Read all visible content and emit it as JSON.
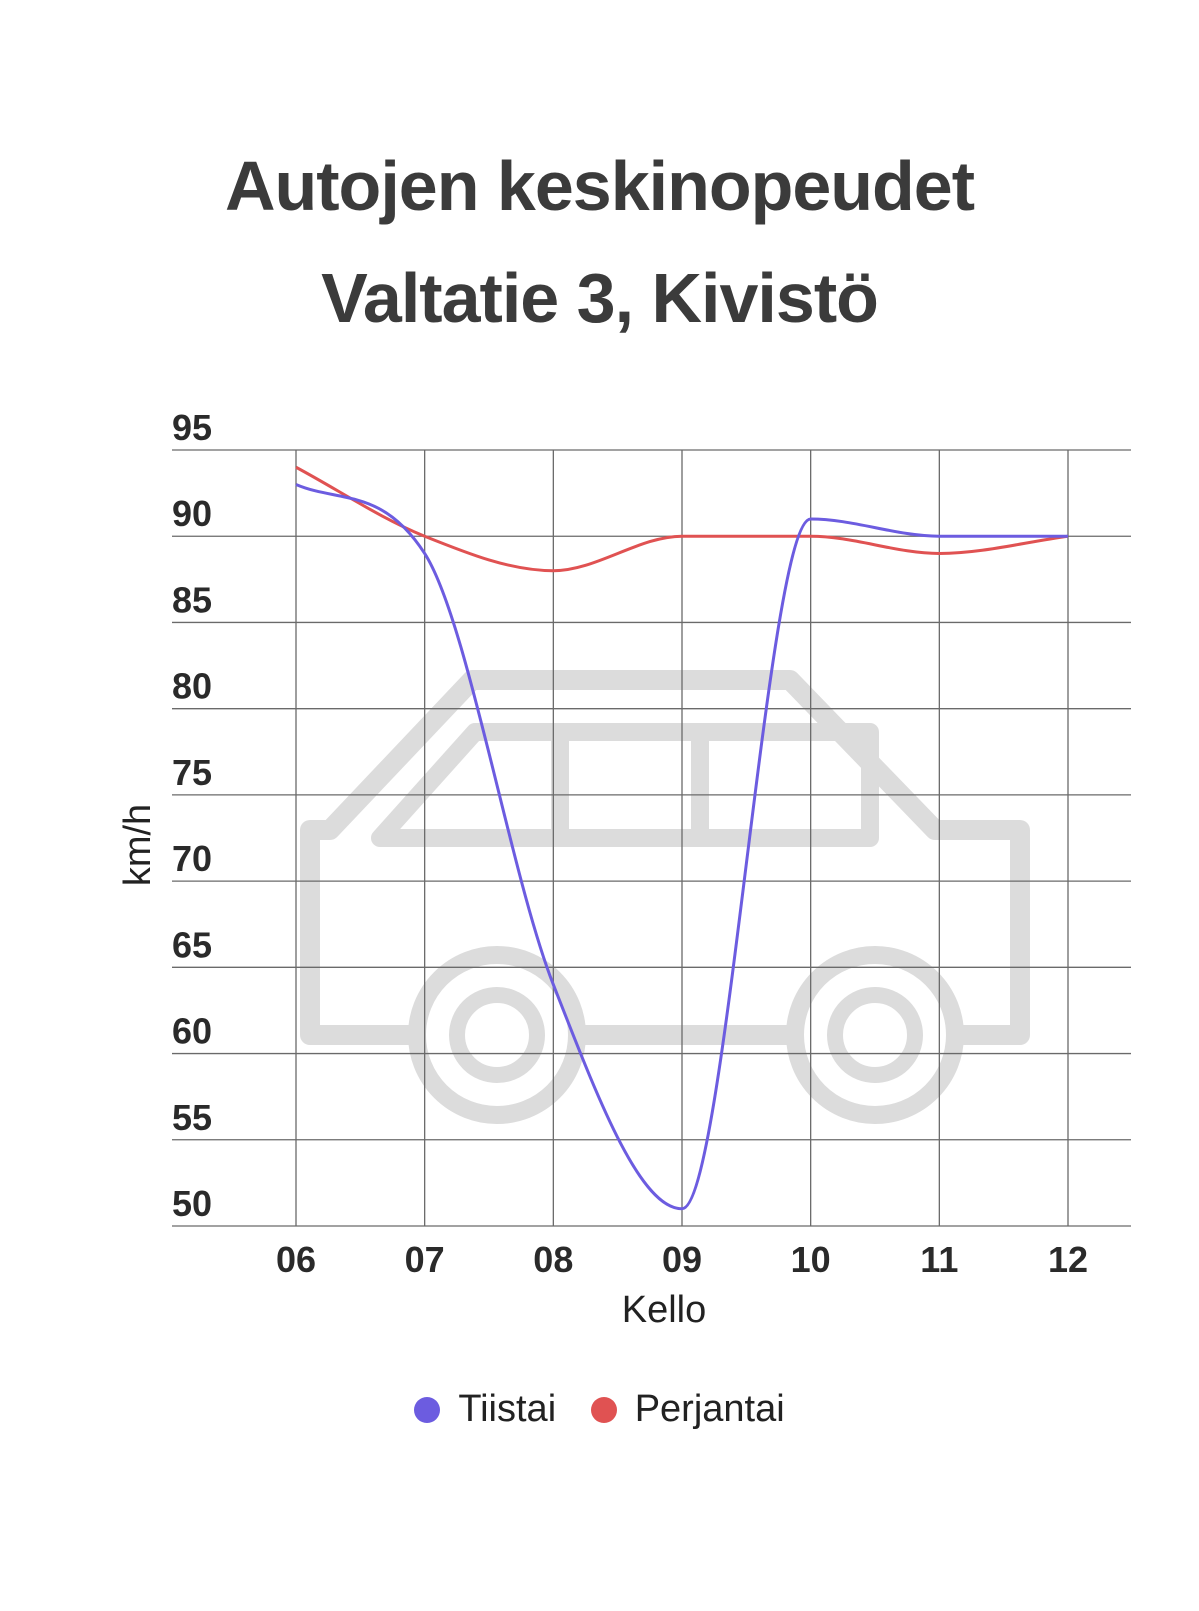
{
  "title": {
    "line1": "Autojen keskinopeudet",
    "line2": "Valtatie 3, Kivistö"
  },
  "chart_data": {
    "type": "line",
    "categories": [
      "06",
      "07",
      "08",
      "09",
      "10",
      "11",
      "12"
    ],
    "series": [
      {
        "name": "Tiistai",
        "color": "#6c5ce0",
        "values": [
          93,
          89,
          64,
          51,
          91,
          90,
          90
        ]
      },
      {
        "name": "Perjantai",
        "color": "#e05252",
        "values": [
          94,
          90,
          88,
          90,
          90,
          89,
          90
        ]
      }
    ],
    "xlabel": "Kello",
    "ylabel": "km/h",
    "yticks": [
      50,
      55,
      60,
      65,
      70,
      75,
      80,
      85,
      90,
      95
    ],
    "ylim": [
      50,
      95
    ],
    "grid": true,
    "legend_position": "bottom",
    "background_icon": "car-icon"
  }
}
